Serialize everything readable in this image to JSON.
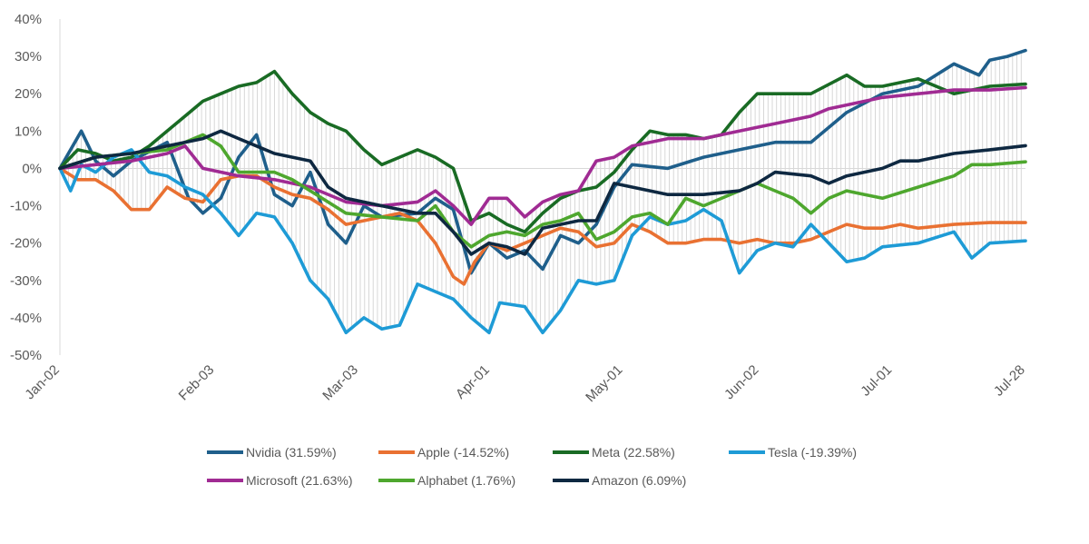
{
  "chart_data": {
    "type": "line",
    "x_tick_labels": [
      "Jan-02",
      "Feb-03",
      "Mar-03",
      "Apr-01",
      "May-01",
      "Jun-02",
      "Jul-01",
      "Jul-28"
    ],
    "y_tick_labels": [
      "40%",
      "30%",
      "20%",
      "10%",
      "0%",
      "-10%",
      "-20%",
      "-30%",
      "-40%",
      "-50%"
    ],
    "ylim": [
      -50,
      40
    ],
    "x_unit": "week index from first trading day (0=Jan-02, 30=Jul-28)",
    "grid": false,
    "legend_position": "bottom",
    "spread_fill": true,
    "series": [
      {
        "name": "Nvidia (31.59%)",
        "color": "#1F5F8B",
        "points": [
          [
            0,
            0
          ],
          [
            0.6,
            10
          ],
          [
            1,
            2
          ],
          [
            1.5,
            -2
          ],
          [
            2,
            2
          ],
          [
            3,
            7
          ],
          [
            3.6,
            -8
          ],
          [
            4,
            -12
          ],
          [
            4.5,
            -8
          ],
          [
            5,
            3
          ],
          [
            5.5,
            9
          ],
          [
            6,
            -7
          ],
          [
            6.5,
            -10
          ],
          [
            7,
            -1
          ],
          [
            7.5,
            -15
          ],
          [
            8,
            -20
          ],
          [
            8.5,
            -10
          ],
          [
            9,
            -13
          ],
          [
            10,
            -12
          ],
          [
            10.5,
            -8
          ],
          [
            11,
            -11
          ],
          [
            11.5,
            -28
          ],
          [
            12,
            -20
          ],
          [
            12.5,
            -24
          ],
          [
            13,
            -22
          ],
          [
            13.5,
            -27
          ],
          [
            14,
            -18
          ],
          [
            14.5,
            -20
          ],
          [
            15,
            -15
          ],
          [
            15.5,
            -5
          ],
          [
            16,
            1
          ],
          [
            17,
            0
          ],
          [
            18,
            3
          ],
          [
            19,
            5
          ],
          [
            20,
            7
          ],
          [
            21,
            7
          ],
          [
            22,
            15
          ],
          [
            23,
            20
          ],
          [
            24,
            22
          ],
          [
            25,
            28
          ],
          [
            25.7,
            25
          ],
          [
            26,
            29
          ],
          [
            26.5,
            30
          ],
          [
            27,
            31.59
          ]
        ]
      },
      {
        "name": "Apple (-14.52%)",
        "color": "#E97132",
        "points": [
          [
            0,
            0
          ],
          [
            0.5,
            -3
          ],
          [
            1,
            -3
          ],
          [
            1.5,
            -6
          ],
          [
            2,
            -11
          ],
          [
            2.5,
            -11
          ],
          [
            3,
            -5
          ],
          [
            3.5,
            -8
          ],
          [
            4,
            -9
          ],
          [
            4.5,
            -3
          ],
          [
            5,
            -2
          ],
          [
            5.5,
            -2
          ],
          [
            6,
            -5
          ],
          [
            6.5,
            -7
          ],
          [
            7,
            -8
          ],
          [
            7.5,
            -11
          ],
          [
            8,
            -15
          ],
          [
            8.5,
            -14
          ],
          [
            9,
            -13
          ],
          [
            9.5,
            -12
          ],
          [
            10,
            -14
          ],
          [
            10.5,
            -20
          ],
          [
            11,
            -29
          ],
          [
            11.3,
            -31
          ],
          [
            11.6,
            -25
          ],
          [
            12,
            -20
          ],
          [
            12.5,
            -22
          ],
          [
            13,
            -20
          ],
          [
            13.5,
            -18
          ],
          [
            14,
            -16
          ],
          [
            14.5,
            -17
          ],
          [
            15,
            -21
          ],
          [
            15.5,
            -20
          ],
          [
            16,
            -15
          ],
          [
            16.5,
            -17
          ],
          [
            17,
            -20
          ],
          [
            17.5,
            -20
          ],
          [
            18,
            -19
          ],
          [
            18.5,
            -19
          ],
          [
            19,
            -20
          ],
          [
            19.5,
            -19
          ],
          [
            20,
            -20
          ],
          [
            20.5,
            -20
          ],
          [
            21,
            -19
          ],
          [
            21.5,
            -17
          ],
          [
            22,
            -15
          ],
          [
            22.5,
            -16
          ],
          [
            23,
            -16
          ],
          [
            23.5,
            -15
          ],
          [
            24,
            -16
          ],
          [
            25,
            -15
          ],
          [
            26,
            -14.5
          ],
          [
            27,
            -14.52
          ]
        ]
      },
      {
        "name": "Meta (22.58%)",
        "color": "#196B24",
        "points": [
          [
            0,
            0
          ],
          [
            0.5,
            5
          ],
          [
            1,
            4
          ],
          [
            1.5,
            2
          ],
          [
            2,
            3
          ],
          [
            2.5,
            6
          ],
          [
            3,
            10
          ],
          [
            3.5,
            14
          ],
          [
            4,
            18
          ],
          [
            4.5,
            20
          ],
          [
            5,
            22
          ],
          [
            5.5,
            23
          ],
          [
            6,
            26
          ],
          [
            6.5,
            20
          ],
          [
            7,
            15
          ],
          [
            7.5,
            12
          ],
          [
            8,
            10
          ],
          [
            8.5,
            5
          ],
          [
            9,
            1
          ],
          [
            9.5,
            3
          ],
          [
            10,
            5
          ],
          [
            10.5,
            3
          ],
          [
            11,
            0
          ],
          [
            11.5,
            -14
          ],
          [
            12,
            -12
          ],
          [
            12.5,
            -15
          ],
          [
            13,
            -17
          ],
          [
            13.5,
            -12
          ],
          [
            14,
            -8
          ],
          [
            14.5,
            -6
          ],
          [
            15,
            -5
          ],
          [
            15.5,
            -1
          ],
          [
            16,
            5
          ],
          [
            16.5,
            10
          ],
          [
            17,
            9
          ],
          [
            17.5,
            9
          ],
          [
            18,
            8
          ],
          [
            18.5,
            9
          ],
          [
            19,
            15
          ],
          [
            19.5,
            20
          ],
          [
            20,
            20
          ],
          [
            21,
            20
          ],
          [
            22,
            25
          ],
          [
            22.5,
            22
          ],
          [
            23,
            22
          ],
          [
            24,
            24
          ],
          [
            25,
            20
          ],
          [
            26,
            22
          ],
          [
            27,
            22.58
          ]
        ]
      },
      {
        "name": "Tesla (-19.39%)",
        "color": "#1E9BD6",
        "points": [
          [
            0,
            0
          ],
          [
            0.3,
            -6
          ],
          [
            0.6,
            1
          ],
          [
            1,
            -1
          ],
          [
            1.5,
            3
          ],
          [
            2,
            5
          ],
          [
            2.5,
            -1
          ],
          [
            3,
            -2
          ],
          [
            3.5,
            -5
          ],
          [
            4,
            -7
          ],
          [
            4.5,
            -12
          ],
          [
            5,
            -18
          ],
          [
            5.5,
            -12
          ],
          [
            6,
            -13
          ],
          [
            6.5,
            -20
          ],
          [
            7,
            -30
          ],
          [
            7.5,
            -35
          ],
          [
            8,
            -44
          ],
          [
            8.5,
            -40
          ],
          [
            9,
            -43
          ],
          [
            9.5,
            -42
          ],
          [
            10,
            -31
          ],
          [
            10.5,
            -33
          ],
          [
            11,
            -35
          ],
          [
            11.5,
            -40
          ],
          [
            12,
            -44
          ],
          [
            12.3,
            -36
          ],
          [
            13,
            -37
          ],
          [
            13.5,
            -44
          ],
          [
            14,
            -38
          ],
          [
            14.5,
            -30
          ],
          [
            15,
            -31
          ],
          [
            15.5,
            -30
          ],
          [
            16,
            -18
          ],
          [
            16.5,
            -13
          ],
          [
            17,
            -15
          ],
          [
            17.5,
            -14
          ],
          [
            18,
            -11
          ],
          [
            18.5,
            -14
          ],
          [
            19,
            -28
          ],
          [
            19.5,
            -22
          ],
          [
            20,
            -20
          ],
          [
            20.5,
            -21
          ],
          [
            21,
            -15
          ],
          [
            21.5,
            -20
          ],
          [
            22,
            -25
          ],
          [
            22.5,
            -24
          ],
          [
            23,
            -21
          ],
          [
            24,
            -20
          ],
          [
            25,
            -17
          ],
          [
            25.5,
            -24
          ],
          [
            26,
            -20
          ],
          [
            27,
            -19.39
          ]
        ]
      },
      {
        "name": "Microsoft (21.63%)",
        "color": "#A02B93",
        "points": [
          [
            0,
            0
          ],
          [
            1,
            1
          ],
          [
            2,
            2
          ],
          [
            3,
            4
          ],
          [
            3.5,
            6
          ],
          [
            4,
            0
          ],
          [
            5,
            -2
          ],
          [
            6,
            -3
          ],
          [
            7,
            -5
          ],
          [
            8,
            -9
          ],
          [
            9,
            -10
          ],
          [
            10,
            -9
          ],
          [
            10.5,
            -6
          ],
          [
            11,
            -10
          ],
          [
            11.5,
            -15
          ],
          [
            12,
            -8
          ],
          [
            12.5,
            -8
          ],
          [
            13,
            -13
          ],
          [
            13.5,
            -9
          ],
          [
            14,
            -7
          ],
          [
            14.5,
            -6
          ],
          [
            15,
            2
          ],
          [
            15.5,
            3
          ],
          [
            16,
            6
          ],
          [
            16.5,
            7
          ],
          [
            17,
            8
          ],
          [
            18,
            8
          ],
          [
            18.5,
            9
          ],
          [
            19,
            10
          ],
          [
            20,
            12
          ],
          [
            21,
            14
          ],
          [
            21.5,
            16
          ],
          [
            22,
            17
          ],
          [
            23,
            19
          ],
          [
            24,
            20
          ],
          [
            25,
            21
          ],
          [
            26,
            21
          ],
          [
            27,
            21.63
          ]
        ]
      },
      {
        "name": "Alphabet (1.76%)",
        "color": "#4EA72E",
        "points": [
          [
            0,
            0
          ],
          [
            1,
            3
          ],
          [
            2,
            4
          ],
          [
            3,
            5
          ],
          [
            3.5,
            7
          ],
          [
            4,
            9
          ],
          [
            4.5,
            6
          ],
          [
            5,
            -1
          ],
          [
            6,
            -1
          ],
          [
            6.5,
            -3
          ],
          [
            7,
            -6
          ],
          [
            8,
            -12
          ],
          [
            9,
            -13
          ],
          [
            10,
            -14
          ],
          [
            10.5,
            -10
          ],
          [
            11,
            -17
          ],
          [
            11.5,
            -21
          ],
          [
            12,
            -18
          ],
          [
            12.5,
            -17
          ],
          [
            13,
            -18
          ],
          [
            13.5,
            -15
          ],
          [
            14,
            -14
          ],
          [
            14.5,
            -12
          ],
          [
            15,
            -19
          ],
          [
            15.5,
            -17
          ],
          [
            16,
            -13
          ],
          [
            16.5,
            -12
          ],
          [
            17,
            -15
          ],
          [
            17.5,
            -8
          ],
          [
            18,
            -10
          ],
          [
            19,
            -6
          ],
          [
            19.5,
            -4
          ],
          [
            20,
            -6
          ],
          [
            20.5,
            -8
          ],
          [
            21,
            -12
          ],
          [
            21.5,
            -8
          ],
          [
            22,
            -6
          ],
          [
            22.5,
            -7
          ],
          [
            23,
            -8
          ],
          [
            24,
            -5
          ],
          [
            25,
            -2
          ],
          [
            25.5,
            1
          ],
          [
            26,
            1
          ],
          [
            27,
            1.76
          ]
        ]
      },
      {
        "name": "Amazon (6.09%)",
        "color": "#0E2841",
        "points": [
          [
            0,
            0
          ],
          [
            1,
            3
          ],
          [
            2,
            4
          ],
          [
            3,
            6
          ],
          [
            4,
            8
          ],
          [
            4.5,
            10
          ],
          [
            5,
            8
          ],
          [
            5.5,
            6
          ],
          [
            6,
            4
          ],
          [
            7,
            2
          ],
          [
            7.5,
            -5
          ],
          [
            8,
            -8
          ],
          [
            9,
            -10
          ],
          [
            10,
            -12
          ],
          [
            10.5,
            -12
          ],
          [
            11,
            -17
          ],
          [
            11.5,
            -23
          ],
          [
            12,
            -20
          ],
          [
            12.5,
            -21
          ],
          [
            13,
            -23
          ],
          [
            13.5,
            -16
          ],
          [
            14,
            -15
          ],
          [
            14.5,
            -14
          ],
          [
            15,
            -14
          ],
          [
            15.5,
            -4
          ],
          [
            16,
            -5
          ],
          [
            16.5,
            -6
          ],
          [
            17,
            -7
          ],
          [
            18,
            -7
          ],
          [
            19,
            -6
          ],
          [
            19.5,
            -4
          ],
          [
            20,
            -1
          ],
          [
            21,
            -2
          ],
          [
            21.5,
            -4
          ],
          [
            22,
            -2
          ],
          [
            23,
            0
          ],
          [
            23.5,
            2
          ],
          [
            24,
            2
          ],
          [
            25,
            4
          ],
          [
            26,
            5
          ],
          [
            27,
            6.09
          ]
        ]
      }
    ]
  }
}
